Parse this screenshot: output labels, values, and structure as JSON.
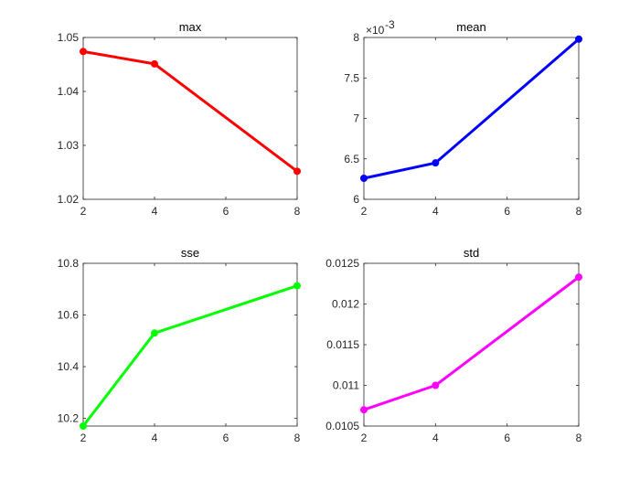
{
  "chart_data": [
    {
      "type": "line",
      "title": "max",
      "x": [
        2,
        4,
        8
      ],
      "series": [
        {
          "values": [
            1.0474,
            1.0451,
            1.0252
          ],
          "color": "#ff0000"
        }
      ],
      "xlim": [
        2,
        8
      ],
      "ylim": [
        1.02,
        1.05
      ],
      "xticks": [
        2,
        4,
        6,
        8
      ],
      "xtick_labels": [
        "2",
        "4",
        "6",
        "8"
      ],
      "yticks": [
        1.02,
        1.03,
        1.04,
        1.05
      ],
      "ytick_labels": [
        "1.02",
        "1.03",
        "1.04",
        "1.05"
      ],
      "grid": false
    },
    {
      "type": "line",
      "title": "mean",
      "x": [
        2,
        4,
        8
      ],
      "series": [
        {
          "values": [
            0.00626,
            0.00645,
            0.00798
          ],
          "color": "#0000ff"
        }
      ],
      "xlim": [
        2,
        8
      ],
      "ylim": [
        0.006,
        0.008
      ],
      "xticks": [
        2,
        4,
        6,
        8
      ],
      "xtick_labels": [
        "2",
        "4",
        "6",
        "8"
      ],
      "yticks": [
        0.006,
        0.0065,
        0.007,
        0.0075,
        0.008
      ],
      "ytick_labels": [
        "6",
        "6.5",
        "7",
        "7.5",
        "8"
      ],
      "exponent_label": {
        "base": "×10",
        "power": "-3"
      },
      "grid": false
    },
    {
      "type": "line",
      "title": "sse",
      "x": [
        2,
        4,
        8
      ],
      "series": [
        {
          "values": [
            10.17,
            10.53,
            10.713
          ],
          "color": "#00ff00"
        }
      ],
      "xlim": [
        2,
        8
      ],
      "ylim": [
        10.17,
        10.8
      ],
      "xticks": [
        2,
        4,
        6,
        8
      ],
      "xtick_labels": [
        "2",
        "4",
        "6",
        "8"
      ],
      "yticks": [
        10.2,
        10.4,
        10.6,
        10.8
      ],
      "ytick_labels": [
        "10.2",
        "10.4",
        "10.6",
        "10.8"
      ],
      "grid": false
    },
    {
      "type": "line",
      "title": "std",
      "x": [
        2,
        4,
        8
      ],
      "series": [
        {
          "values": [
            0.0107,
            0.011,
            0.01233
          ],
          "color": "#ff00ff"
        }
      ],
      "xlim": [
        2,
        8
      ],
      "ylim": [
        0.0105,
        0.0125
      ],
      "xticks": [
        2,
        4,
        6,
        8
      ],
      "xtick_labels": [
        "2",
        "4",
        "6",
        "8"
      ],
      "yticks": [
        0.0105,
        0.011,
        0.0115,
        0.012,
        0.0125
      ],
      "ytick_labels": [
        "0.0105",
        "0.011",
        "0.0115",
        "0.012",
        "0.0125"
      ],
      "grid": false
    }
  ]
}
